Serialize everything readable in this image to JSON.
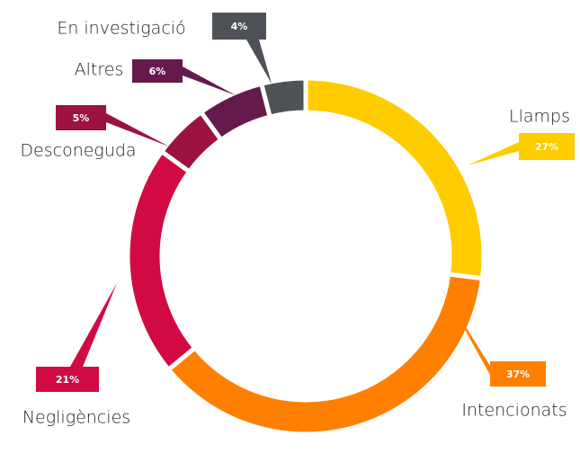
{
  "chart_data": {
    "type": "donut",
    "categories": [
      "Llamps",
      "Intencionats",
      "Negligències",
      "Desconeguda",
      "Altres",
      "En investigació"
    ],
    "values": [
      27,
      37,
      21,
      5,
      6,
      4
    ],
    "value_labels": [
      "27%",
      "37%",
      "21%",
      "5%",
      "6%",
      "4%"
    ],
    "colors": [
      "#ffcc00",
      "#ff8000",
      "#d10a44",
      "#9c1242",
      "#651a4c",
      "#4e5257"
    ]
  }
}
